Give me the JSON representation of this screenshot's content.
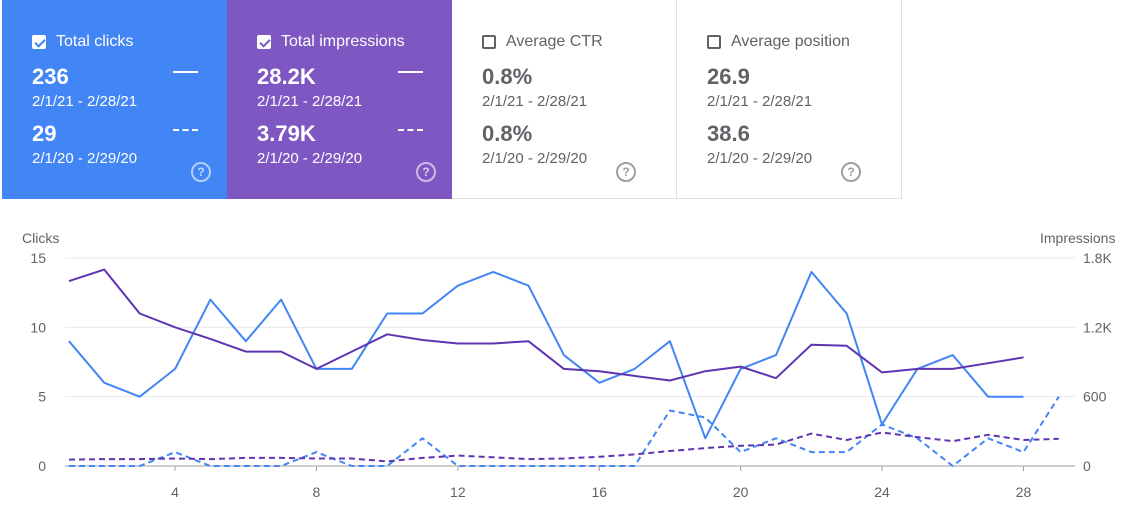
{
  "cards": {
    "clicks": {
      "label": "Total clicks",
      "checked": true,
      "current_value": "236",
      "current_range": "2/1/21 - 2/28/21",
      "previous_value": "29",
      "previous_range": "2/1/20 - 2/29/20"
    },
    "impressions": {
      "label": "Total impressions",
      "checked": true,
      "current_value": "28.2K",
      "current_range": "2/1/21 - 2/28/21",
      "previous_value": "3.79K",
      "previous_range": "2/1/20 - 2/29/20"
    },
    "ctr": {
      "label": "Average CTR",
      "checked": false,
      "current_value": "0.8%",
      "current_range": "2/1/21 - 2/28/21",
      "previous_value": "0.8%",
      "previous_range": "2/1/20 - 2/29/20"
    },
    "position": {
      "label": "Average position",
      "checked": false,
      "current_value": "26.9",
      "current_range": "2/1/21 - 2/28/21",
      "previous_value": "38.6",
      "previous_range": "2/1/20 - 2/29/20"
    }
  },
  "icons": {
    "checkbox": "checkbox-icon",
    "help": "help-circle-icon"
  },
  "colors": {
    "clicks": "#4285f4",
    "impressions": "#7e57c2",
    "impressions_line": "#5e35b1"
  },
  "chart_data": {
    "type": "line",
    "ylabel_left": "Clicks",
    "ylabel_right": "Impressions",
    "y_left_ticks": [
      "0",
      "5",
      "10",
      "15"
    ],
    "y_right_ticks": [
      "0",
      "600",
      "1.2K",
      "1.8K"
    ],
    "x_ticks": [
      "4",
      "8",
      "12",
      "16",
      "20",
      "24",
      "28"
    ],
    "ylim_left": [
      0,
      15
    ],
    "ylim_right": [
      0,
      1800
    ],
    "x": [
      1,
      2,
      3,
      4,
      5,
      6,
      7,
      8,
      9,
      10,
      11,
      12,
      13,
      14,
      15,
      16,
      17,
      18,
      19,
      20,
      21,
      22,
      23,
      24,
      25,
      26,
      27,
      28,
      29
    ],
    "series": [
      {
        "name": "Total clicks",
        "axis": "left",
        "style": "solid",
        "values": [
          9,
          6,
          5,
          7,
          12,
          9,
          12,
          7,
          7,
          11,
          11,
          13,
          14,
          13,
          8,
          6,
          7,
          9,
          2,
          7,
          8,
          14,
          11,
          3,
          7,
          8,
          5,
          5,
          null
        ]
      },
      {
        "name": "Total impressions",
        "axis": "right",
        "style": "solid",
        "values": [
          1600,
          1700,
          1320,
          1200,
          1100,
          990,
          990,
          840,
          990,
          1140,
          1090,
          1060,
          1060,
          1080,
          840,
          820,
          780,
          740,
          820,
          860,
          760,
          1050,
          1040,
          810,
          840,
          840,
          890,
          940,
          null
        ]
      },
      {
        "name": "Total clicks (previous)",
        "axis": "left",
        "style": "dashed",
        "values": [
          0,
          0,
          0,
          1,
          0,
          0,
          0,
          1,
          0,
          0,
          2,
          0,
          0,
          0,
          0,
          0,
          0,
          4,
          3.5,
          1,
          2,
          1,
          1,
          3,
          2,
          0,
          2,
          1,
          5
        ]
      },
      {
        "name": "Total impressions (previous)",
        "axis": "right",
        "style": "dashed",
        "values": [
          55,
          60,
          60,
          65,
          60,
          70,
          70,
          65,
          65,
          40,
          70,
          90,
          75,
          60,
          65,
          80,
          100,
          130,
          155,
          175,
          185,
          280,
          225,
          290,
          250,
          215,
          270,
          225,
          235
        ]
      }
    ]
  }
}
